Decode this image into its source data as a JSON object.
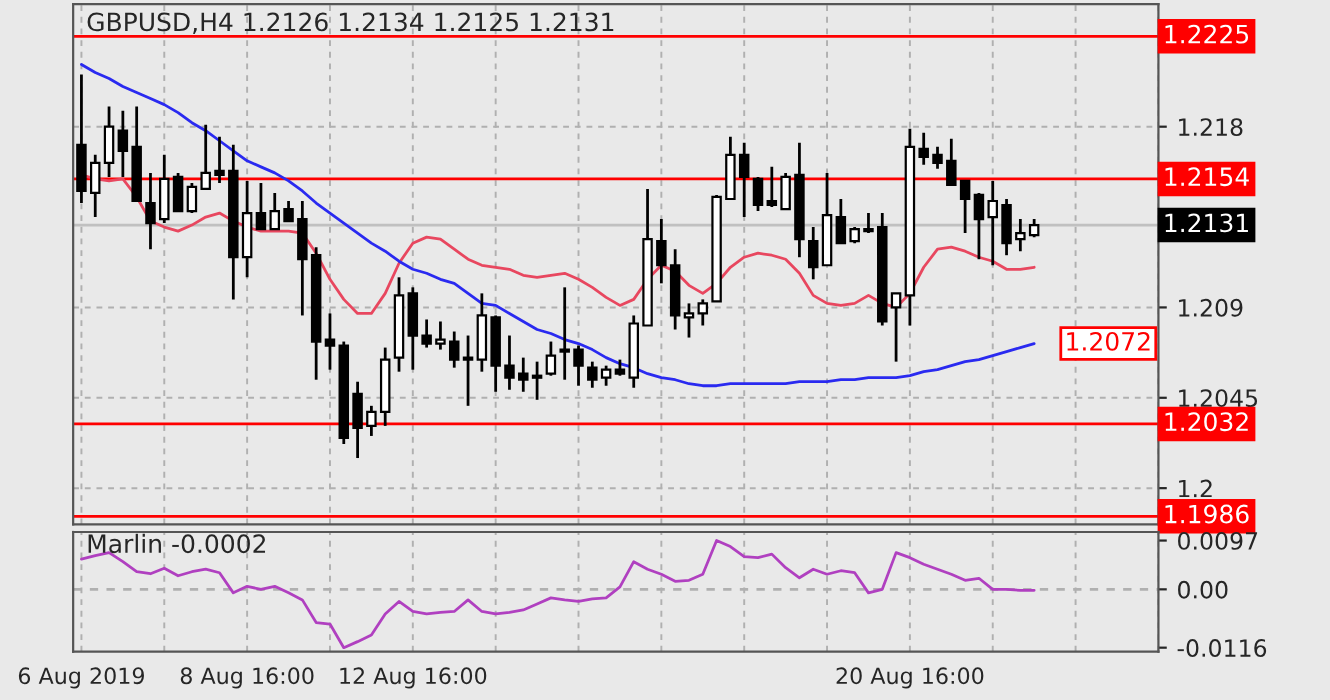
{
  "chart_data": [
    {
      "type": "candlestick",
      "title": "GBPUSD,H4 1.2126 1.2134 1.2125 1.2131",
      "categories": [
        null,
        null,
        null,
        null,
        null,
        null,
        null,
        null,
        null,
        null,
        null,
        null,
        null,
        null,
        null,
        null,
        null,
        null,
        null,
        null,
        null,
        null,
        null,
        null,
        null,
        null,
        null,
        null,
        null,
        null,
        null,
        null,
        null,
        null,
        null,
        null,
        null,
        null,
        null,
        null,
        null,
        null,
        null,
        null,
        null,
        null,
        null,
        null,
        null,
        null,
        null,
        null,
        null,
        null,
        null,
        null,
        null,
        null,
        null,
        null,
        null,
        null,
        null,
        null,
        null,
        null,
        null,
        null,
        null,
        null
      ],
      "ohlc": [
        [
          1.2171,
          1.2206,
          1.2142,
          1.2148
        ],
        [
          1.2147,
          1.2166,
          1.2135,
          1.2162
        ],
        [
          1.2162,
          1.219,
          1.2155,
          1.218
        ],
        [
          1.2178,
          1.2188,
          1.2155,
          1.2168
        ],
        [
          1.217,
          1.219,
          1.2143,
          1.2143
        ],
        [
          1.2142,
          1.2157,
          1.2119,
          1.2132
        ],
        [
          1.2134,
          1.2166,
          1.2132,
          1.2154
        ],
        [
          1.2155,
          1.2157,
          1.2138,
          1.2138
        ],
        [
          1.2138,
          1.2152,
          1.2137,
          1.215
        ],
        [
          1.2149,
          1.2181,
          1.2149,
          1.2157
        ],
        [
          1.2158,
          1.2175,
          1.2152,
          1.2156
        ],
        [
          1.2158,
          1.2171,
          1.2094,
          1.2115
        ],
        [
          1.2115,
          1.2153,
          1.2105,
          1.2137
        ],
        [
          1.2137,
          1.2152,
          1.2129,
          1.2129
        ],
        [
          1.2129,
          1.2147,
          1.2129,
          1.2138
        ],
        [
          1.2139,
          1.2143,
          1.2133,
          1.2133
        ],
        [
          1.2134,
          1.2143,
          1.2086,
          1.2114
        ],
        [
          1.2116,
          1.212,
          1.2054,
          1.2073
        ],
        [
          1.2074,
          1.2087,
          1.2059,
          1.2071
        ],
        [
          1.2071,
          1.2073,
          1.2022,
          1.2025
        ],
        [
          1.2047,
          1.2053,
          1.2015,
          1.203
        ],
        [
          1.2031,
          1.2041,
          1.2026,
          1.2038
        ],
        [
          1.2038,
          1.207,
          1.2031,
          1.2064
        ],
        [
          1.2065,
          1.2105,
          1.2058,
          1.2096
        ],
        [
          1.2097,
          1.21,
          1.2059,
          1.2076
        ],
        [
          1.2076,
          1.2084,
          1.207,
          1.2072
        ],
        [
          1.2072,
          1.2083,
          1.2069,
          1.2074
        ],
        [
          1.2073,
          1.2078,
          1.206,
          1.2064
        ],
        [
          1.2065,
          1.2076,
          1.2041,
          1.2064
        ],
        [
          1.2064,
          1.2097,
          1.2058,
          1.2086
        ],
        [
          1.2085,
          1.2086,
          1.2048,
          1.2061
        ],
        [
          1.2061,
          1.2076,
          1.2049,
          1.2055
        ],
        [
          1.2057,
          1.2065,
          1.2048,
          1.2054
        ],
        [
          1.2056,
          1.2063,
          1.2044,
          1.2055
        ],
        [
          1.2057,
          1.2073,
          1.2056,
          1.2066
        ],
        [
          1.2069,
          1.21,
          1.2054,
          1.2068
        ],
        [
          1.2069,
          1.2071,
          1.2051,
          1.2061
        ],
        [
          1.206,
          1.2063,
          1.205,
          1.2054
        ],
        [
          1.2055,
          1.2061,
          1.2051,
          1.2059
        ],
        [
          1.2059,
          1.2064,
          1.2056,
          1.2057
        ],
        [
          1.2055,
          1.2086,
          1.205,
          1.2082
        ],
        [
          1.2081,
          1.2149,
          1.2081,
          1.2124
        ],
        [
          1.2123,
          1.2134,
          1.2102,
          1.2111
        ],
        [
          1.2111,
          1.2119,
          1.2079,
          1.2086
        ],
        [
          1.2085,
          1.2092,
          1.2075,
          1.2087
        ],
        [
          1.2087,
          1.2094,
          1.2081,
          1.2092
        ],
        [
          1.2093,
          1.2146,
          1.2093,
          1.2145
        ],
        [
          1.2144,
          1.2175,
          1.2144,
          1.2166
        ],
        [
          1.2166,
          1.2172,
          1.2135,
          1.2155
        ],
        [
          1.2154,
          1.2155,
          1.2138,
          1.2141
        ],
        [
          1.2143,
          1.216,
          1.214,
          1.2141
        ],
        [
          1.2139,
          1.2157,
          1.2139,
          1.2155
        ],
        [
          1.2156,
          1.2172,
          1.2115,
          1.2124
        ],
        [
          1.2123,
          1.213,
          1.2104,
          1.211
        ],
        [
          1.2111,
          1.2157,
          1.2111,
          1.2136
        ],
        [
          1.2135,
          1.2144,
          1.2122,
          1.2122
        ],
        [
          1.2123,
          1.213,
          1.2122,
          1.2129
        ],
        [
          1.2129,
          1.2137,
          1.2127,
          1.2128
        ],
        [
          1.213,
          1.2137,
          1.2081,
          1.2083
        ],
        [
          1.209,
          1.2097,
          1.2063,
          1.2097
        ],
        [
          1.2096,
          1.2179,
          1.2081,
          1.217
        ],
        [
          1.2169,
          1.2177,
          1.2161,
          1.2165
        ],
        [
          1.2166,
          1.217,
          1.2159,
          1.2162
        ],
        [
          1.2163,
          1.2174,
          1.2151,
          1.2151
        ],
        [
          1.2153,
          1.2153,
          1.2127,
          1.2144
        ],
        [
          1.2146,
          1.2147,
          1.2114,
          1.2134
        ],
        [
          1.2135,
          1.2153,
          1.2111,
          1.2143
        ],
        [
          1.2141,
          1.2144,
          1.2116,
          1.2122
        ],
        [
          1.2124,
          1.2134,
          1.2118,
          1.2127
        ],
        [
          1.2126,
          1.2134,
          1.2125,
          1.2131
        ]
      ],
      "series": [
        {
          "type": "line",
          "color": "#e8475f",
          "values": [
            1.2156,
            1.2154,
            1.2153,
            1.2154,
            1.2145,
            1.2133,
            1.213,
            1.2128,
            1.2131,
            1.2135,
            1.2137,
            1.2133,
            1.213,
            1.2128,
            1.2128,
            1.2128,
            1.2127,
            1.2117,
            1.2104,
            1.2094,
            1.2087,
            1.2087,
            1.2097,
            1.2112,
            1.2122,
            1.2125,
            1.2124,
            1.2119,
            1.2114,
            1.2111,
            1.211,
            1.2109,
            1.2106,
            1.2105,
            1.2106,
            1.2107,
            1.2104,
            1.21,
            1.2095,
            1.2091,
            1.2094,
            1.2104,
            1.2111,
            1.2108,
            1.2101,
            1.2097,
            1.2102,
            1.211,
            1.2115,
            1.2117,
            1.2116,
            1.2114,
            1.2107,
            1.2096,
            1.2092,
            1.2091,
            1.2092,
            1.2096,
            1.2092,
            1.209,
            1.2097,
            1.211,
            1.2119,
            1.212,
            1.2118,
            1.2115,
            1.2113,
            1.2109,
            1.2109,
            1.211
          ]
        },
        {
          "type": "line",
          "color": "#2a2af0",
          "values": [
            1.2211,
            1.2207,
            1.2204,
            1.22,
            1.2197,
            1.2194,
            1.2191,
            1.2187,
            1.2182,
            1.2178,
            1.2173,
            1.2168,
            1.2163,
            1.216,
            1.2157,
            1.2153,
            1.2148,
            1.2142,
            1.2137,
            1.2132,
            1.2127,
            1.2122,
            1.2118,
            1.2113,
            1.2109,
            1.2107,
            1.2104,
            1.2102,
            1.2097,
            1.2092,
            1.2091,
            1.2087,
            1.2083,
            1.2079,
            1.2077,
            1.2074,
            1.2072,
            1.2069,
            1.2065,
            1.2062,
            1.206,
            1.2057,
            1.2055,
            1.2054,
            1.2052,
            1.2051,
            1.2051,
            1.2052,
            1.2052,
            1.2052,
            1.2052,
            1.2052,
            1.2053,
            1.2053,
            1.2053,
            1.2054,
            1.2054,
            1.2055,
            1.2055,
            1.2055,
            1.2056,
            1.2058,
            1.2059,
            1.2061,
            1.2063,
            1.2064,
            1.2066,
            1.2068,
            1.207,
            1.2072
          ]
        }
      ],
      "ylim": [
        1.1982,
        1.2241
      ],
      "yticks": [
        1.218,
        1.209,
        1.2045,
        1.2
      ],
      "ref_lines": [
        {
          "axis": "y",
          "value": 1.2225,
          "label": "1.2225",
          "color": "#ff0000"
        },
        {
          "axis": "y",
          "value": 1.2154,
          "label": "1.2154",
          "color": "#ff0000"
        },
        {
          "axis": "y",
          "value": 1.2131,
          "label": "1.2131",
          "color": "#c0c0c0"
        },
        {
          "axis": "y",
          "value": 1.2032,
          "label": "1.2032",
          "color": "#ff0000"
        },
        {
          "axis": "y",
          "value": 1.1986,
          "label": "1.1986",
          "color": "#ff0000"
        }
      ],
      "annotations": [
        "1.2072"
      ],
      "grid": true,
      "tick_labels": "y"
    },
    {
      "type": "line",
      "title": "Marlin -0.0002",
      "categories": [
        "6 Aug 2019",
        null,
        null,
        null,
        null,
        null,
        null,
        null,
        null,
        null,
        null,
        null,
        "8 Aug 16:00",
        null,
        null,
        null,
        null,
        null,
        null,
        null,
        null,
        null,
        null,
        null,
        "12 Aug 16:00",
        null,
        null,
        null,
        null,
        null,
        null,
        null,
        null,
        null,
        null,
        null,
        null,
        null,
        null,
        null,
        null,
        null,
        null,
        null,
        null,
        null,
        null,
        null,
        null,
        null,
        null,
        null,
        null,
        null,
        null,
        null,
        null,
        null,
        null,
        null,
        "20 Aug 16:00",
        null,
        null,
        null,
        null,
        null,
        null,
        null,
        null,
        null
      ],
      "series": [
        {
          "color": "#b040c0",
          "values": [
            0.006,
            0.0067,
            0.0073,
            0.0055,
            0.0035,
            0.0031,
            0.0042,
            0.0027,
            0.0035,
            0.004,
            0.0033,
            -0.0007,
            0.0006,
            0.0,
            0.0006,
            -0.0007,
            -0.0021,
            -0.0066,
            -0.0069,
            -0.0116,
            -0.0104,
            -0.0091,
            -0.0049,
            -0.0024,
            -0.0044,
            -0.0049,
            -0.0046,
            -0.0044,
            -0.0021,
            -0.0044,
            -0.0049,
            -0.0046,
            -0.0041,
            -0.0029,
            -0.0017,
            -0.0021,
            -0.0024,
            -0.0019,
            -0.0017,
            0.0005,
            0.0055,
            0.004,
            0.003,
            0.0016,
            0.0018,
            0.003,
            0.0097,
            0.0085,
            0.0065,
            0.0063,
            0.007,
            0.0043,
            0.0023,
            0.004,
            0.003,
            0.0037,
            0.0033,
            -0.0007,
            0.0,
            0.0073,
            0.0063,
            0.005,
            0.004,
            0.003,
            0.0018,
            0.0022,
            0.0,
            0.0,
            -0.0002,
            -0.0002
          ]
        }
      ],
      "ylim": [
        -0.0124,
        0.0114
      ],
      "yticks": [
        0.0097,
        {
          "value": 0,
          "label": "0.00"
        },
        -0.0116
      ],
      "ref_lines": [
        {
          "axis": "y",
          "value": 0,
          "color": "#b0b0b0",
          "line_style": "dashed"
        }
      ],
      "grid": "x"
    }
  ]
}
